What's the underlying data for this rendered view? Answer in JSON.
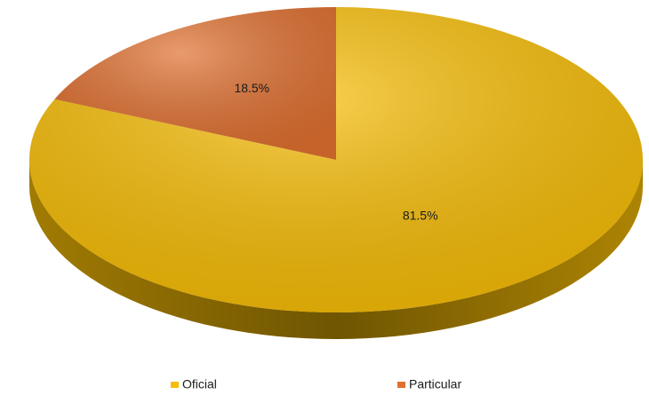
{
  "chart_data": {
    "type": "pie",
    "categories": [
      "Oficial",
      "Particular"
    ],
    "values": [
      81.5,
      18.5
    ],
    "value_labels": [
      "81.5%",
      "18.5%"
    ],
    "colors": [
      "#f7bd05",
      "#e07030"
    ],
    "legend": "bottom"
  }
}
